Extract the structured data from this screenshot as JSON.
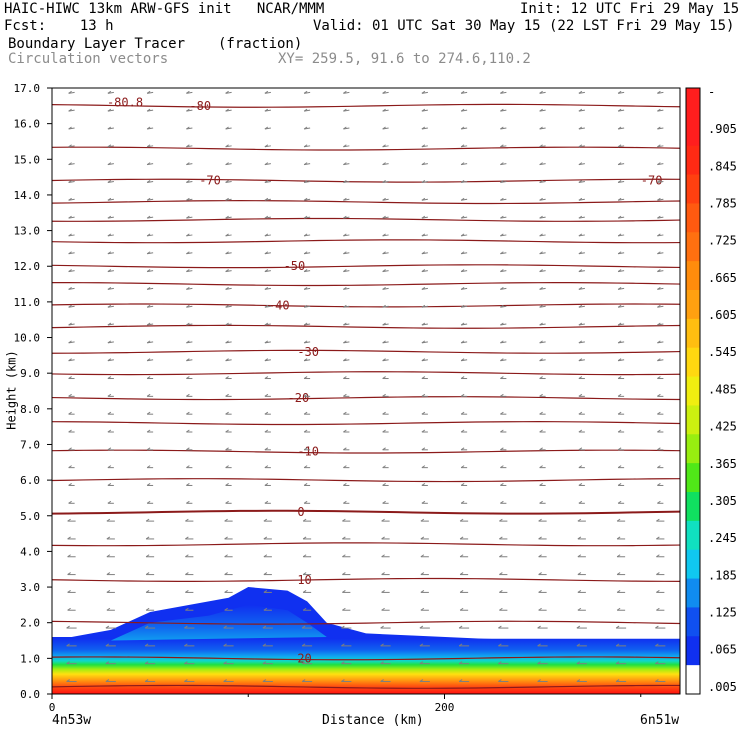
{
  "header": {
    "line1_left": "HAIC-HIWC 13km ARW-GFS init   NCAR/MMM",
    "line1_right": "Init: 12 UTC Fri 29 May 15",
    "line2_left": "Fcst:    13 h",
    "line2_right": "Valid: 01 UTC Sat 30 May 15 (22 LST Fri 29 May 15)",
    "line3_left": "Boundary Layer Tracer",
    "line3_units": "(fraction)",
    "line4_left": "Circulation vectors",
    "line4_xy": "XY= 259.5, 91.6 to 274.6,110.2"
  },
  "axes": {
    "ylabel": "Height (km)",
    "xlabel": "Distance (km)",
    "left_endpoint": "4n53w",
    "right_endpoint": "6n51w"
  },
  "colorbar": {
    "labels": [
      "-",
      ".905",
      ".845",
      ".785",
      ".725",
      ".665",
      ".605",
      ".545",
      ".485",
      ".425",
      ".365",
      ".305",
      ".245",
      ".185",
      ".125",
      ".065",
      ".005"
    ],
    "colors": [
      "#ff1e1e",
      "#ff1e1e",
      "#ff2a14",
      "#ff4010",
      "#ff5a10",
      "#ff7010",
      "#ff8c0c",
      "#ffa010",
      "#ffbe10",
      "#ffd810",
      "#f0ee10",
      "#ccf010",
      "#98ee10",
      "#50e818",
      "#10e060",
      "#10e0c0",
      "#10c8f0",
      "#108cf0",
      "#1050f0",
      "#1030f0",
      "#ffffff"
    ]
  },
  "chart_data": {
    "type": "heatmap",
    "title": "Boundary Layer Tracer",
    "units": "(fraction)",
    "x": {
      "label": "Distance (km)",
      "range": [
        0,
        320
      ],
      "ticks": [
        0,
        200
      ]
    },
    "y": {
      "label": "Height (km)",
      "range": [
        0,
        17
      ],
      "ticks": [
        0.0,
        1.0,
        2.0,
        3.0,
        4.0,
        5.0,
        6.0,
        7.0,
        8.0,
        9.0,
        10.0,
        11.0,
        12.0,
        13.0,
        14.0,
        15.0,
        16.0,
        17.0
      ]
    },
    "tick_labels_y": [
      "0.0",
      "1.0",
      "2.0",
      "3.0",
      "4.0",
      "5.0",
      "6.0",
      "7.0",
      "8.0",
      "9.0",
      "10.0",
      "11.0",
      "12.0",
      "13.0",
      "14.0",
      "15.0",
      "16.0",
      "17.0"
    ],
    "tick_labels_x": [
      "0",
      "200"
    ],
    "colorbar_levels": [
      0.005,
      0.065,
      0.125,
      0.185,
      0.245,
      0.305,
      0.365,
      0.425,
      0.485,
      0.545,
      0.605,
      0.665,
      0.725,
      0.785,
      0.845,
      0.905
    ],
    "boundary_layer_top_km": [
      [
        0,
        1.6
      ],
      [
        10,
        1.6
      ],
      [
        30,
        1.8
      ],
      [
        50,
        2.3
      ],
      [
        70,
        2.5
      ],
      [
        90,
        2.7
      ],
      [
        100,
        3.0
      ],
      [
        120,
        2.9
      ],
      [
        130,
        2.6
      ],
      [
        140,
        2.0
      ],
      [
        160,
        1.7
      ],
      [
        220,
        1.55
      ],
      [
        280,
        1.45
      ],
      [
        320,
        1.35
      ]
    ],
    "temperature_contours": [
      {
        "label": "20",
        "y_km": 1.0
      },
      {
        "label": "10",
        "y_km": 3.2
      },
      {
        "label": "0",
        "y_km": 5.1
      },
      {
        "label": "-10",
        "y_km": 6.8
      },
      {
        "label": "-20",
        "y_km": 8.3
      },
      {
        "label": "-30",
        "y_km": 9.6
      },
      {
        "label": "-40",
        "y_km": 10.9
      },
      {
        "label": "-50",
        "y_km": 12.0
      },
      {
        "label": "-70",
        "y_km": 14.4
      },
      {
        "label": "-80",
        "y_km": 16.5
      },
      {
        "label": "-80.8",
        "y_km": 16.6
      }
    ],
    "contour_levels_km": [
      0.2,
      1.0,
      2.0,
      3.2,
      4.2,
      5.1,
      6.0,
      6.8,
      7.6,
      8.3,
      9.0,
      9.6,
      10.3,
      10.9,
      11.5,
      12.0,
      12.7,
      13.3,
      13.8,
      14.4,
      15.3,
      16.5
    ],
    "vector_note": "Circulation vectors"
  },
  "colors": {
    "contour": "#8b1a1a",
    "vector": "#7f7f7f"
  }
}
